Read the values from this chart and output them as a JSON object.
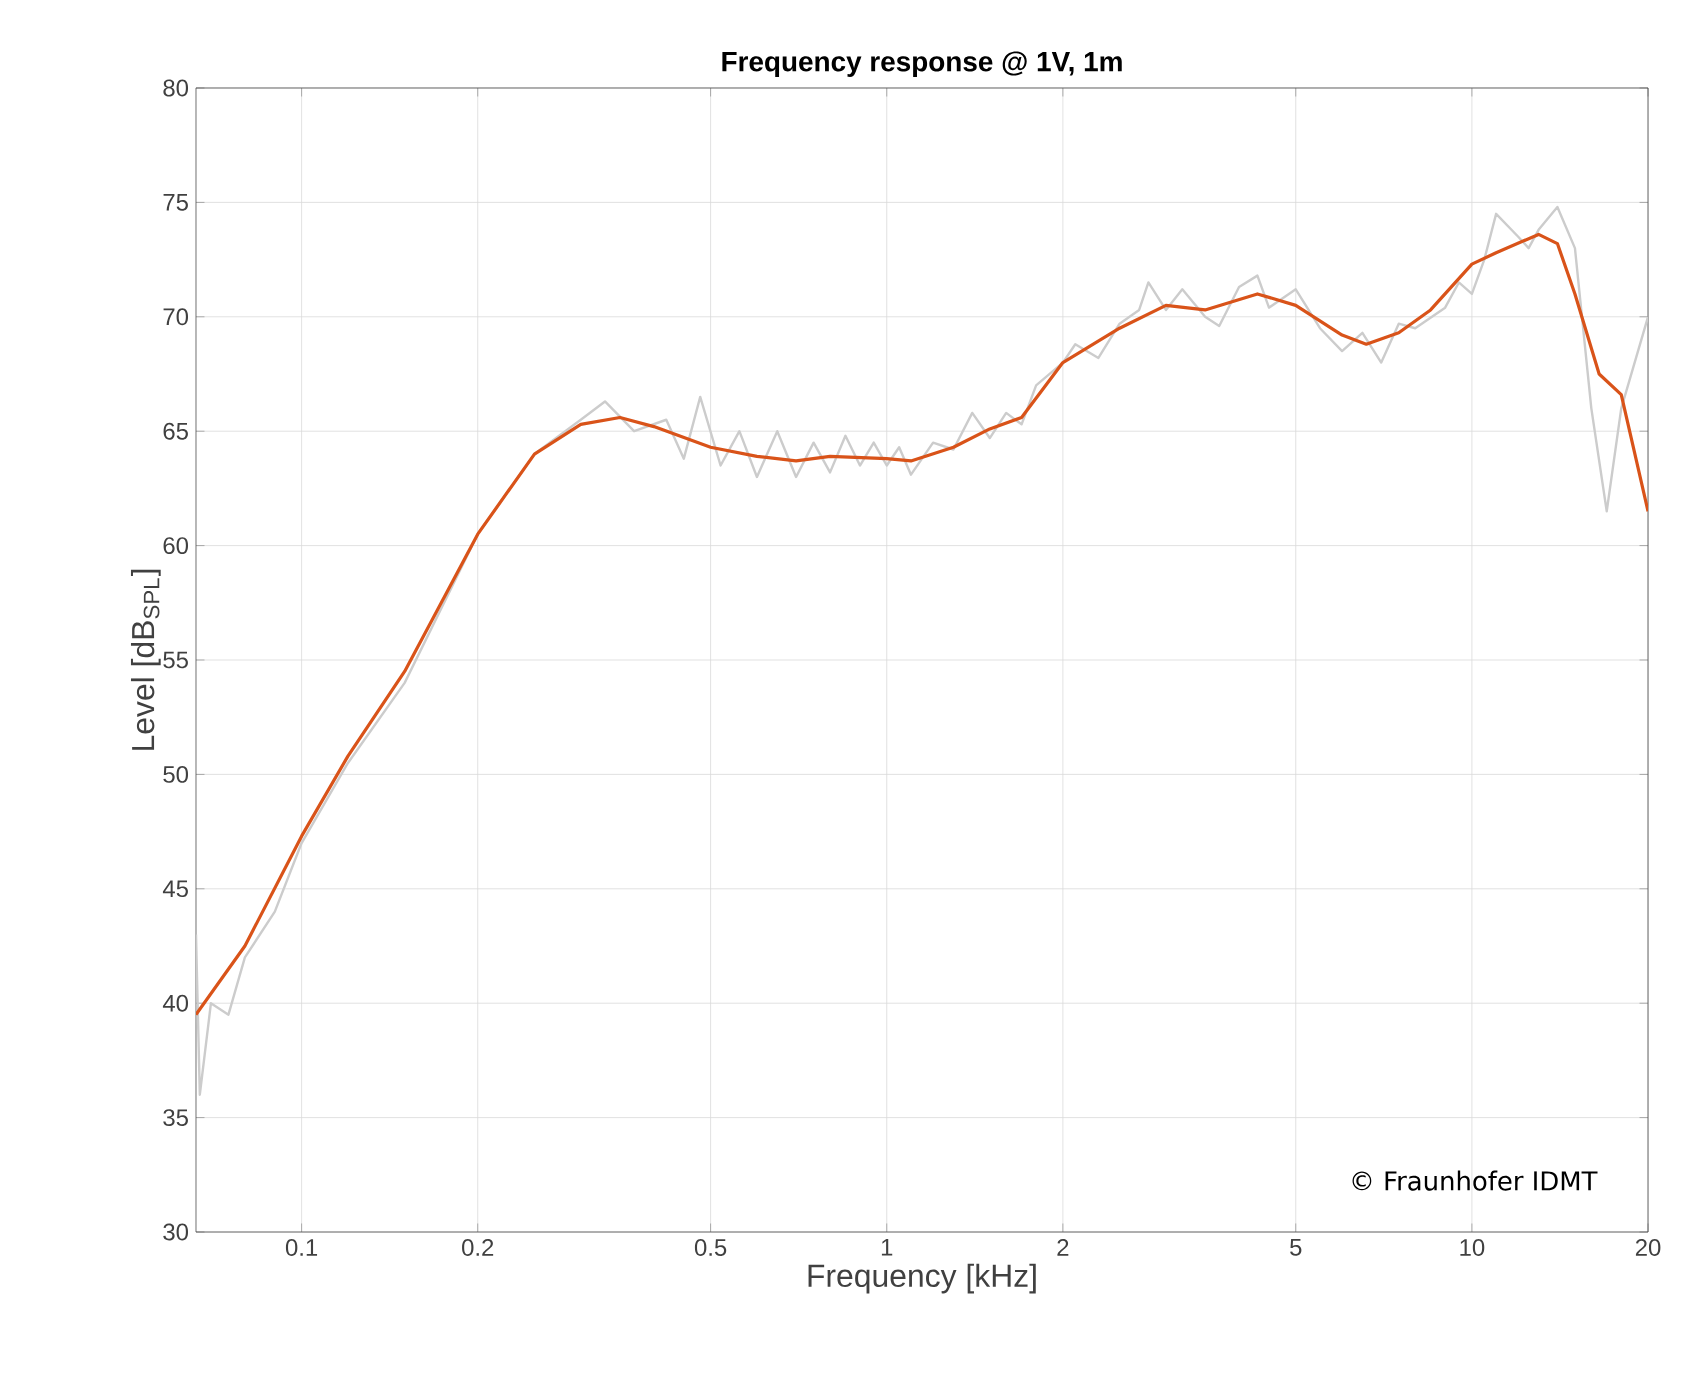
{
  "chart_data": {
    "type": "line",
    "title": "Frequency response @ 1V, 1m",
    "xlabel": "Frequency [kHz]",
    "ylabel": "Level [dB$_{SPL}$]",
    "log": "x",
    "grid": true,
    "xlim": [
      0.066,
      20
    ],
    "ylim": [
      30,
      80
    ],
    "xticks": [
      0.1,
      0.2,
      0.5,
      1,
      2,
      5,
      10,
      20
    ],
    "yticks": [
      30,
      35,
      40,
      45,
      50,
      55,
      60,
      65,
      70,
      75,
      80
    ],
    "annotations": [
      "© Fraunhofer IDMT"
    ],
    "series": [
      {
        "color": "#cccccc",
        "x": [
          0.066,
          0.067,
          0.07,
          0.075,
          0.08,
          0.09,
          0.1,
          0.12,
          0.15,
          0.2,
          0.25,
          0.3,
          0.33,
          0.37,
          0.42,
          0.45,
          0.48,
          0.52,
          0.56,
          0.6,
          0.65,
          0.7,
          0.75,
          0.8,
          0.85,
          0.9,
          0.95,
          1.0,
          1.05,
          1.1,
          1.2,
          1.3,
          1.4,
          1.5,
          1.6,
          1.7,
          1.8,
          2.0,
          2.1,
          2.3,
          2.5,
          2.7,
          2.8,
          3.0,
          3.2,
          3.5,
          3.7,
          4.0,
          4.3,
          4.5,
          5.0,
          5.5,
          6.0,
          6.5,
          7.0,
          7.5,
          8.0,
          9.0,
          9.5,
          10,
          10.5,
          11,
          12,
          12.5,
          13,
          14,
          15,
          16,
          17,
          18,
          20
        ],
        "values": [
          43,
          36,
          40,
          39.5,
          42,
          44,
          47,
          50.5,
          54,
          60.5,
          64,
          65.5,
          66.3,
          65,
          65.5,
          63.8,
          66.5,
          63.5,
          65,
          63,
          65,
          63,
          64.5,
          63.2,
          64.8,
          63.5,
          64.5,
          63.5,
          64.3,
          63.1,
          64.5,
          64.2,
          65.8,
          64.7,
          65.8,
          65.3,
          67,
          68,
          68.8,
          68.2,
          69.7,
          70.3,
          71.5,
          70.3,
          71.2,
          70,
          69.6,
          71.3,
          71.8,
          70.4,
          71.2,
          69.5,
          68.5,
          69.3,
          68,
          69.7,
          69.5,
          70.4,
          71.5,
          71,
          72.5,
          74.5,
          73.5,
          73,
          73.8,
          74.8,
          73,
          66,
          61.5,
          66,
          70
        ]
      },
      {
        "color": "#d95319",
        "x": [
          0.066,
          0.08,
          0.1,
          0.12,
          0.15,
          0.2,
          0.25,
          0.3,
          0.35,
          0.4,
          0.5,
          0.6,
          0.7,
          0.8,
          1.0,
          1.1,
          1.3,
          1.5,
          1.7,
          2.0,
          2.5,
          3.0,
          3.5,
          4.3,
          5.0,
          6.0,
          6.6,
          7.5,
          8.5,
          10,
          11,
          13,
          14,
          15,
          16.5,
          18,
          20
        ],
        "values": [
          39.5,
          42.5,
          47.3,
          50.8,
          54.5,
          60.5,
          64,
          65.3,
          65.6,
          65.2,
          64.3,
          63.9,
          63.7,
          63.9,
          63.8,
          63.7,
          64.3,
          65.1,
          65.6,
          68,
          69.5,
          70.5,
          70.3,
          71,
          70.5,
          69.2,
          68.8,
          69.3,
          70.3,
          72.3,
          72.8,
          73.6,
          73.2,
          71,
          67.5,
          66.6,
          61.5
        ]
      }
    ]
  }
}
